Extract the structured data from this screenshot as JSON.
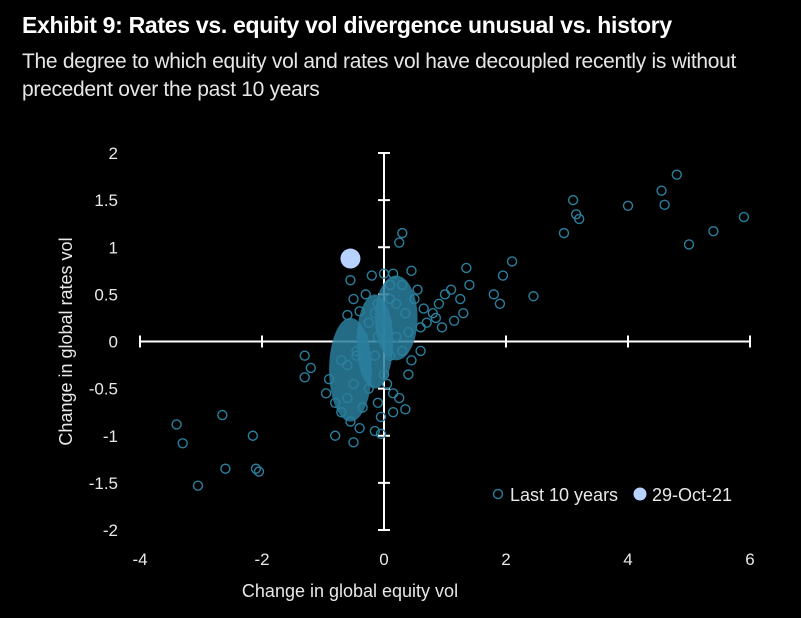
{
  "header": {
    "title": "Exhibit 9: Rates vs. equity vol divergence unusual vs. history",
    "subtitle": "The degree to which equity vol and rates vol have decoupled recently is without precedent over the past 10 years"
  },
  "colors": {
    "background": "#000000",
    "axis": "#ffffff",
    "series_history": "#2a7f9e",
    "series_latest": "#b8d2ff",
    "text": "#e8e8e8"
  },
  "chart_data": {
    "type": "scatter",
    "xlabel": "Change in global equity vol",
    "ylabel": "Change in global rates vol",
    "xlim": [
      -4,
      6
    ],
    "ylim": [
      -2,
      2
    ],
    "x_ticks": [
      -4,
      -2,
      0,
      2,
      4,
      6
    ],
    "y_ticks": [
      -2,
      -1.5,
      -1,
      -0.5,
      0,
      0.5,
      1,
      1.5,
      2
    ],
    "grid": false,
    "legend_position": "bottom-right",
    "series": [
      {
        "name": "Last 10 years",
        "marker": "hollow-circle",
        "points": [
          [
            4.8,
            1.77
          ],
          [
            4.55,
            1.6
          ],
          [
            4.6,
            1.45
          ],
          [
            3.1,
            1.5
          ],
          [
            3.15,
            1.35
          ],
          [
            3.2,
            1.3
          ],
          [
            4.0,
            1.44
          ],
          [
            5.9,
            1.32
          ],
          [
            2.95,
            1.15
          ],
          [
            5.4,
            1.17
          ],
          [
            5.0,
            1.03
          ],
          [
            2.1,
            0.85
          ],
          [
            1.95,
            0.7
          ],
          [
            2.45,
            0.48
          ],
          [
            1.8,
            0.5
          ],
          [
            1.9,
            0.4
          ],
          [
            1.35,
            0.78
          ],
          [
            1.4,
            0.6
          ],
          [
            1.25,
            0.45
          ],
          [
            1.3,
            0.3
          ],
          [
            1.1,
            0.55
          ],
          [
            1.0,
            0.5
          ],
          [
            1.15,
            0.22
          ],
          [
            0.9,
            0.4
          ],
          [
            0.85,
            0.25
          ],
          [
            0.3,
            1.15
          ],
          [
            0.25,
            1.05
          ],
          [
            0.95,
            0.15
          ],
          [
            -3.4,
            -0.88
          ],
          [
            -3.3,
            -1.08
          ],
          [
            -2.65,
            -0.78
          ],
          [
            -2.6,
            -1.35
          ],
          [
            -2.15,
            -1.0
          ],
          [
            -2.1,
            -1.35
          ],
          [
            -2.05,
            -1.38
          ],
          [
            -3.05,
            -1.53
          ],
          [
            -1.3,
            -0.15
          ],
          [
            -1.3,
            -0.38
          ],
          [
            -1.2,
            -0.28
          ],
          [
            -0.9,
            -0.4
          ],
          [
            -0.95,
            -0.55
          ],
          [
            -0.8,
            -0.65
          ],
          [
            -0.7,
            -0.75
          ],
          [
            -0.6,
            -0.6
          ],
          [
            -0.8,
            -1.0
          ],
          [
            -0.5,
            -1.07
          ],
          [
            -0.55,
            -0.85
          ],
          [
            -0.4,
            -0.92
          ],
          [
            -0.15,
            -0.95
          ],
          [
            -0.05,
            -0.98
          ],
          [
            0.35,
            -0.72
          ],
          [
            0.15,
            -0.55
          ],
          [
            0.25,
            -0.6
          ],
          [
            0.4,
            -0.35
          ],
          [
            0.45,
            -0.2
          ],
          [
            0.6,
            -0.1
          ],
          [
            -0.55,
            0.65
          ],
          [
            -0.5,
            0.45
          ],
          [
            -0.4,
            0.32
          ],
          [
            -0.6,
            0.28
          ],
          [
            0.45,
            0.75
          ],
          [
            0.55,
            0.55
          ],
          [
            0.65,
            0.35
          ],
          [
            0.7,
            0.2
          ],
          [
            0.4,
            0.1
          ],
          [
            0.8,
            0.3
          ],
          [
            -0.2,
            0.7
          ],
          [
            0.0,
            0.72
          ],
          [
            0.15,
            0.72
          ],
          [
            -0.3,
            0.5
          ],
          [
            0.1,
            0.6
          ],
          [
            0.3,
            0.6
          ],
          [
            -0.1,
            0.4
          ],
          [
            0.2,
            0.4
          ],
          [
            -0.25,
            0.2
          ],
          [
            0.05,
            0.2
          ],
          [
            0.35,
            0.3
          ],
          [
            -0.35,
            0.05
          ],
          [
            -0.1,
            0.05
          ],
          [
            0.2,
            0.05
          ],
          [
            -0.45,
            -0.1
          ],
          [
            -0.15,
            -0.15
          ],
          [
            0.1,
            -0.15
          ],
          [
            -0.6,
            -0.25
          ],
          [
            -0.3,
            -0.3
          ],
          [
            0.0,
            -0.35
          ],
          [
            -0.5,
            -0.45
          ],
          [
            -0.25,
            -0.5
          ],
          [
            0.05,
            -0.45
          ],
          [
            -0.35,
            -0.7
          ],
          [
            -0.1,
            -0.65
          ],
          [
            0.15,
            -0.75
          ],
          [
            -0.45,
            -0.15
          ],
          [
            -0.7,
            -0.2
          ],
          [
            -0.15,
            0.3
          ],
          [
            0.1,
            0.45
          ],
          [
            0.5,
            0.45
          ],
          [
            -0.05,
            -0.8
          ],
          [
            0.6,
            0.15
          ],
          [
            0.3,
            -0.1
          ]
        ]
      },
      {
        "name": "29-Oct-21",
        "marker": "filled-circle",
        "points": [
          [
            -0.55,
            0.88
          ]
        ]
      }
    ],
    "legend": [
      "Last 10 years",
      "29-Oct-21"
    ]
  }
}
